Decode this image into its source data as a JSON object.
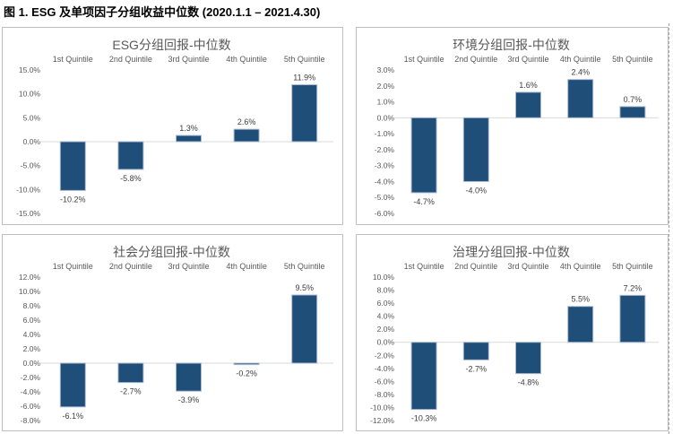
{
  "page": {
    "title": "图 1. ESG 及单项因子分组收益中位数 (2020.1.1 – 2021.4.30)"
  },
  "colors": {
    "bar_fill": "#1F4E79",
    "bar_border": "#A9BAD1",
    "axis_text": "#595959",
    "data_label_text": "#404040",
    "zero_line": "#D9D9D9",
    "panel_border": "#BFBFBF"
  },
  "chart_data": [
    {
      "type": "bar",
      "title": "ESG分组回报-中位数",
      "categories": [
        "1st Quintile",
        "2nd Quintile",
        "3rd Quintile",
        "4th Quintile",
        "5th Quintile"
      ],
      "values": [
        -10.2,
        -5.8,
        1.3,
        2.6,
        11.9
      ],
      "data_labels": [
        "-10.2%",
        "-5.8%",
        "1.3%",
        "2.6%",
        "11.9%"
      ],
      "xlabel": "",
      "ylabel": "",
      "ylim": [
        -15,
        15
      ],
      "ytick_step": 5,
      "yticks": [
        15,
        10,
        5,
        0,
        -5,
        -10,
        -15
      ],
      "ytick_format": "0.0%",
      "legend_position": "none",
      "grid": "zero-line-only"
    },
    {
      "type": "bar",
      "title": "环境分组回报-中位数",
      "categories": [
        "1st Quintile",
        "2nd Quintile",
        "3rd Quintile",
        "4th Quintile",
        "5th Quintile"
      ],
      "values": [
        -4.7,
        -4.0,
        1.6,
        2.4,
        0.7
      ],
      "data_labels": [
        "-4.7%",
        "-4.0%",
        "1.6%",
        "2.4%",
        "0.7%"
      ],
      "xlabel": "",
      "ylabel": "",
      "ylim": [
        -6,
        3
      ],
      "ytick_step": 1,
      "yticks": [
        3,
        2,
        1,
        0,
        -1,
        -2,
        -3,
        -4,
        -5,
        -6
      ],
      "ytick_format": "0.0%",
      "legend_position": "none",
      "grid": "zero-line-only"
    },
    {
      "type": "bar",
      "title": "社会分组回报-中位数",
      "categories": [
        "1st Quintile",
        "2nd Quintile",
        "3rd Quintile",
        "4th Quintile",
        "5th Quintile"
      ],
      "values": [
        -6.1,
        -2.7,
        -3.9,
        -0.2,
        9.5
      ],
      "data_labels": [
        "-6.1%",
        "-2.7%",
        "-3.9%",
        "-0.2%",
        "9.5%"
      ],
      "xlabel": "",
      "ylabel": "",
      "ylim": [
        -8,
        12
      ],
      "ytick_step": 2,
      "yticks": [
        12,
        10,
        8,
        6,
        4,
        2,
        0,
        -2,
        -4,
        -6,
        -8
      ],
      "ytick_format": "0.0%",
      "legend_position": "none",
      "grid": "zero-line-only"
    },
    {
      "type": "bar",
      "title": "治理分组回报-中位数",
      "categories": [
        "1st Quintile",
        "2nd Quintile",
        "3rd Quintile",
        "4th Quintile",
        "5th Quintile"
      ],
      "values": [
        -10.3,
        -2.7,
        -4.8,
        5.5,
        7.2
      ],
      "data_labels": [
        "-10.3%",
        "-2.7%",
        "-4.8%",
        "5.5%",
        "7.2%"
      ],
      "xlabel": "",
      "ylabel": "",
      "ylim": [
        -12,
        10
      ],
      "ytick_step": 2,
      "yticks": [
        10,
        8,
        6,
        4,
        2,
        0,
        -2,
        -4,
        -6,
        -8,
        -10,
        -12
      ],
      "ytick_format": "0.0%",
      "legend_position": "none",
      "grid": "zero-line-only"
    }
  ]
}
